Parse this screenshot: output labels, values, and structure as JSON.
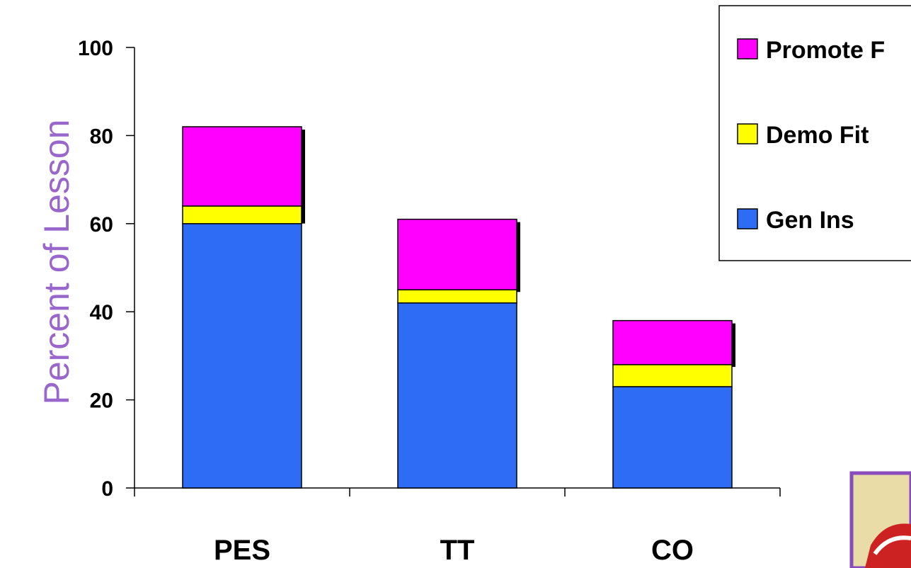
{
  "chart_data": {
    "type": "bar",
    "stacked": true,
    "categories": [
      "PES",
      "TT",
      "CO"
    ],
    "series": [
      {
        "name": "Gen Ins",
        "color": "#2f6cf5",
        "values": [
          60,
          42,
          23
        ]
      },
      {
        "name": "Demo Fit",
        "color": "#ffff00",
        "values": [
          4,
          3,
          5
        ]
      },
      {
        "name": "Promote F",
        "color": "#ff00ff",
        "values": [
          18,
          16,
          10
        ]
      }
    ],
    "ylabel": "Percent of   Lesson",
    "xlabel": "",
    "title": "",
    "ylim": [
      0,
      100
    ],
    "yticks": [
      "0",
      "20",
      "40",
      "60",
      "80",
      "100"
    ],
    "legend_position": "top-right",
    "grid": false
  }
}
